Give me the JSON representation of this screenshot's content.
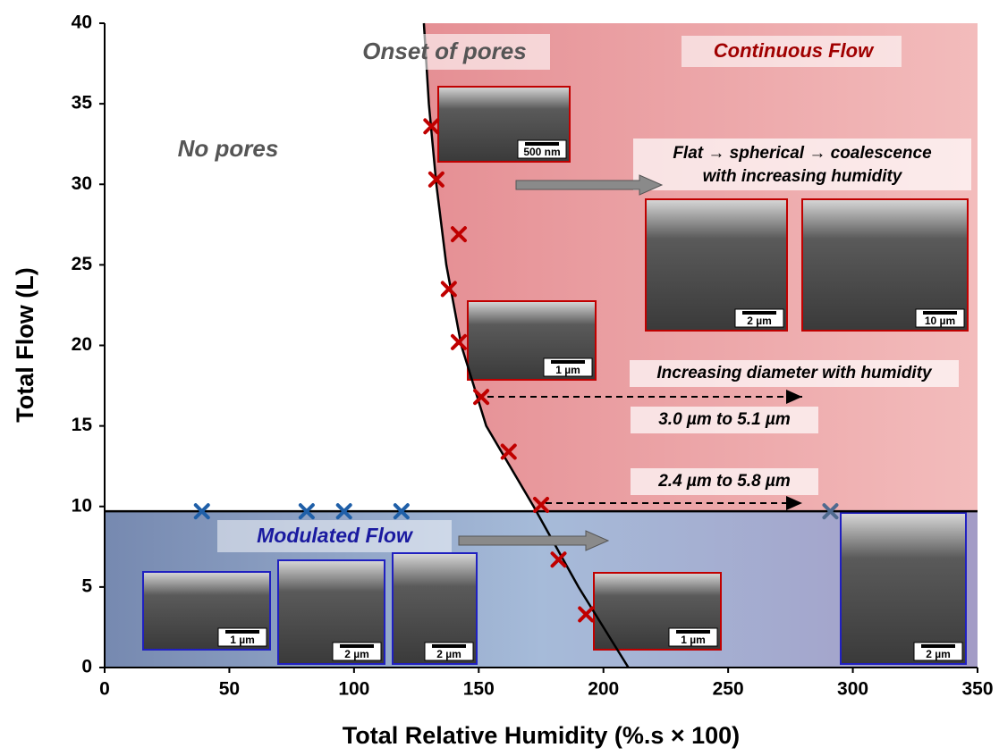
{
  "chart_data": {
    "type": "scatter",
    "xlabel": "Total Relative Humidity (%.s × 100)",
    "ylabel": "Total Flow (L)",
    "xlim": [
      0,
      350
    ],
    "xticks": [
      0,
      50,
      100,
      150,
      200,
      250,
      300,
      350
    ],
    "ylim": [
      0,
      40
    ],
    "yticks": [
      0,
      5,
      10,
      15,
      20,
      25,
      30,
      35,
      40
    ],
    "series": [
      {
        "color": "#c00000",
        "x": [
          131,
          133,
          142,
          138,
          142,
          151,
          162,
          175,
          182,
          193
        ],
        "y": [
          33.6,
          30.3,
          26.9,
          23.5,
          20.2,
          16.8,
          13.4,
          10.1,
          6.7,
          3.3
        ]
      },
      {
        "color": "#1f5fa8",
        "x": [
          39,
          81,
          96,
          119
        ],
        "y": [
          9.7,
          9.7,
          9.7,
          9.7
        ]
      },
      {
        "color": "#4f6a8f",
        "x": [
          291
        ],
        "y": [
          9.7
        ]
      }
    ],
    "curve": {
      "color": "#000000",
      "x": [
        128,
        129,
        130,
        133,
        137,
        143,
        153,
        172,
        190,
        210
      ],
      "y": [
        40,
        37.5,
        35,
        30,
        25,
        20,
        15,
        10,
        5,
        0
      ]
    },
    "threshold": 9.7,
    "annotations": {
      "onset": "Onset of pores",
      "continuous": "Continuous Flow",
      "no_pores": "No pores",
      "flat_1": "Flat → spherical → coalescence",
      "flat_2": "with increasing humidity",
      "diameter": "Increasing diameter with humidity",
      "range_1": "3.0 µm to 5.1 µm",
      "range_2": "2.4 µm to 5.8 µm",
      "modulated": "Modulated Flow"
    },
    "scale_bars": [
      "500 nm",
      "2 µm",
      "10 µm",
      "1 µm",
      "1 µm",
      "2 µm",
      "2 µm",
      "1 µm",
      "2 µm"
    ]
  }
}
